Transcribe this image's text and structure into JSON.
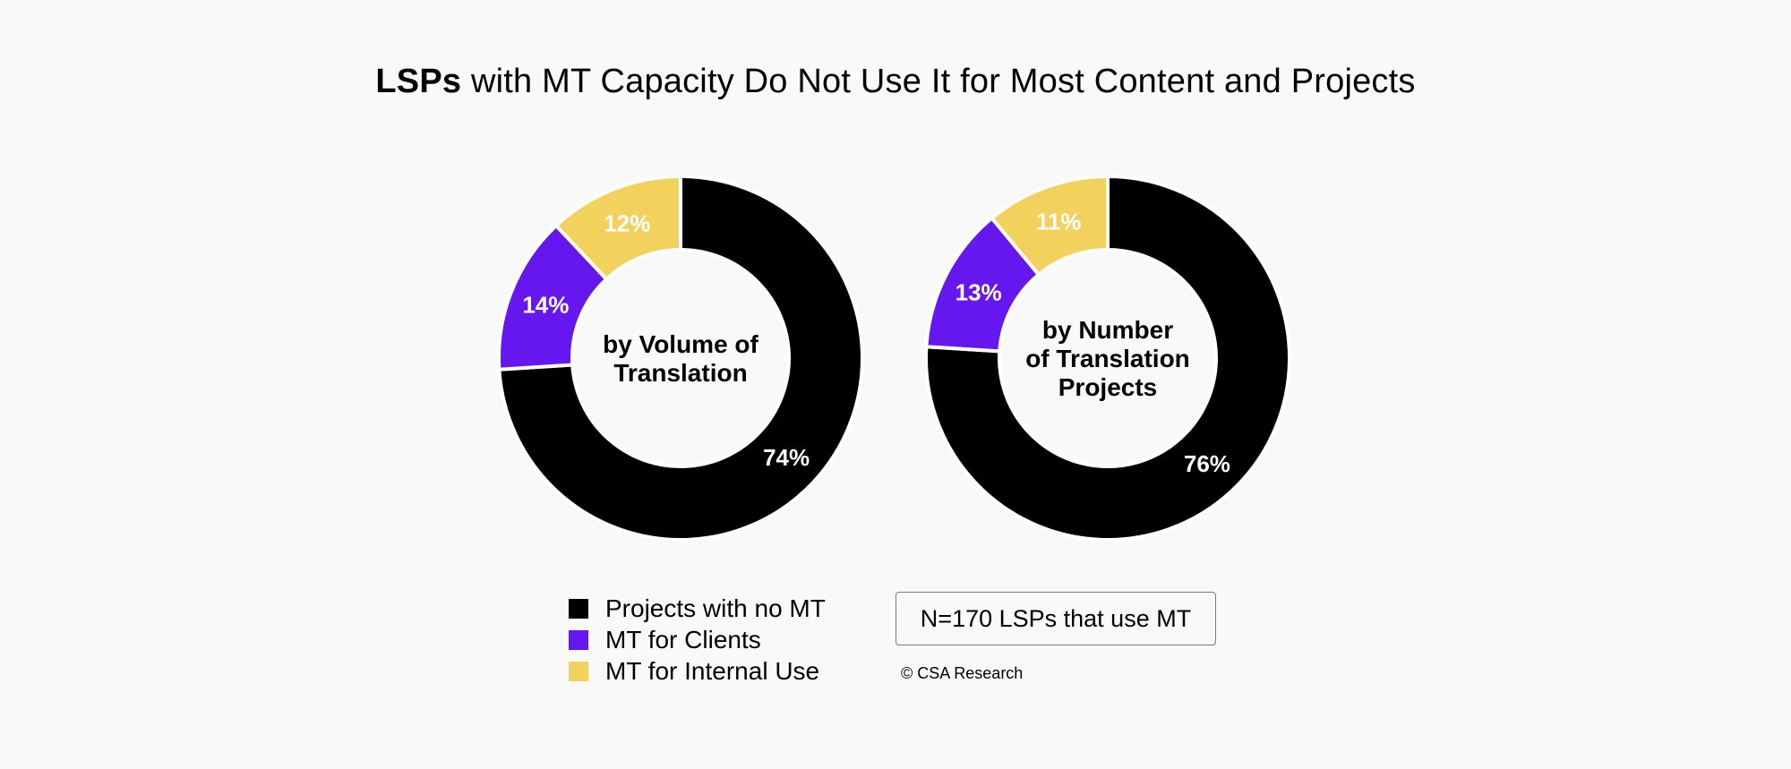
{
  "title": {
    "bold": "LSPs",
    "rest": " with MT Capacity Do Not Use It for Most Content and Projects"
  },
  "chart_data": [
    {
      "type": "pie",
      "donut": true,
      "center_label": [
        "by Volume of",
        "Translation"
      ],
      "slices": [
        {
          "name": "Projects with no MT",
          "value": 74,
          "label": "74%",
          "color": "#000000"
        },
        {
          "name": "MT for Clients",
          "value": 14,
          "label": "14%",
          "color": "#6617f0"
        },
        {
          "name": "MT for Internal Use",
          "value": 12,
          "label": "12%",
          "color": "#f2d15d"
        }
      ]
    },
    {
      "type": "pie",
      "donut": true,
      "center_label": [
        "by Number",
        "of Translation",
        "Projects"
      ],
      "slices": [
        {
          "name": "Projects with no MT",
          "value": 76,
          "label": "76%",
          "color": "#000000"
        },
        {
          "name": "MT for Clients",
          "value": 13,
          "label": "13%",
          "color": "#6617f0"
        },
        {
          "name": "MT for Internal Use",
          "value": 11,
          "label": "11%",
          "color": "#f2d15d"
        }
      ]
    }
  ],
  "legend": {
    "items": [
      {
        "label": "Projects with no MT",
        "color": "#000000"
      },
      {
        "label": "MT for Clients",
        "color": "#6617f0"
      },
      {
        "label": "MT for Internal Use",
        "color": "#f2d15d"
      }
    ]
  },
  "note": "N=170 LSPs that use MT",
  "copyright": "© CSA Research"
}
